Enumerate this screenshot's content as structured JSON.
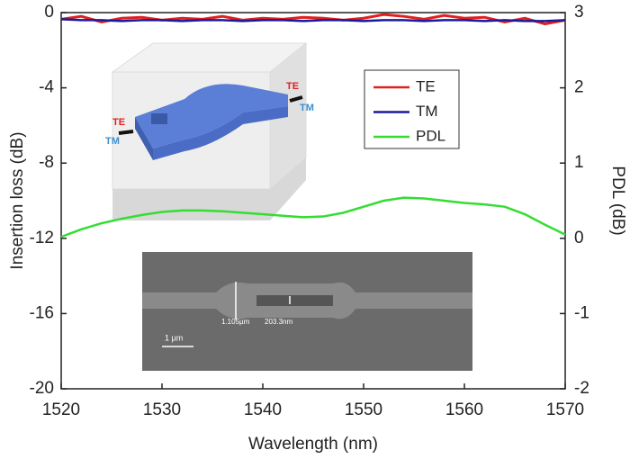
{
  "chart_data": {
    "type": "line",
    "xlabel": "Wavelength (nm)",
    "ylabel": "Insertion loss (dB)",
    "y2label": "PDL (dB)",
    "x": [
      1520,
      1522,
      1524,
      1526,
      1528,
      1530,
      1532,
      1534,
      1536,
      1538,
      1540,
      1542,
      1544,
      1546,
      1548,
      1550,
      1552,
      1554,
      1556,
      1558,
      1560,
      1562,
      1564,
      1566,
      1568,
      1570
    ],
    "series": [
      {
        "name": "TE",
        "color": "#e02020",
        "values": [
          -0.35,
          -0.2,
          -0.5,
          -0.3,
          -0.25,
          -0.4,
          -0.3,
          -0.35,
          -0.2,
          -0.4,
          -0.3,
          -0.35,
          -0.25,
          -0.3,
          -0.4,
          -0.3,
          -0.1,
          -0.2,
          -0.35,
          -0.15,
          -0.3,
          -0.25,
          -0.5,
          -0.3,
          -0.6,
          -0.4
        ]
      },
      {
        "name": "TM",
        "color": "#1a1a9a",
        "values": [
          -0.35,
          -0.4,
          -0.4,
          -0.45,
          -0.4,
          -0.4,
          -0.45,
          -0.4,
          -0.4,
          -0.45,
          -0.4,
          -0.4,
          -0.45,
          -0.4,
          -0.4,
          -0.45,
          -0.4,
          -0.4,
          -0.45,
          -0.4,
          -0.4,
          -0.45,
          -0.4,
          -0.45,
          -0.45,
          -0.4
        ]
      },
      {
        "name": "PDL",
        "color": "#33dd33",
        "axis": "y2",
        "values": [
          0.02,
          0.12,
          0.2,
          0.26,
          0.31,
          0.35,
          0.37,
          0.37,
          0.36,
          0.34,
          0.32,
          0.3,
          0.28,
          0.29,
          0.34,
          0.42,
          0.5,
          0.54,
          0.53,
          0.5,
          0.47,
          0.45,
          0.42,
          0.32,
          0.18,
          0.05
        ]
      }
    ],
    "xlim": [
      1520,
      1570
    ],
    "xticks": [
      1520,
      1530,
      1540,
      1550,
      1560,
      1570
    ],
    "ylim": [
      -20,
      0
    ],
    "yticks": [
      0,
      -4,
      -8,
      -12,
      -16,
      -20
    ],
    "y2lim": [
      -2,
      3
    ],
    "y2ticks": [
      3,
      2,
      1,
      0,
      -1,
      -2
    ],
    "legend": "upper right",
    "annotations": [
      "TE",
      "TM",
      "TE",
      "TM",
      "1.105µm",
      "203.3nm",
      "1 µm"
    ]
  }
}
